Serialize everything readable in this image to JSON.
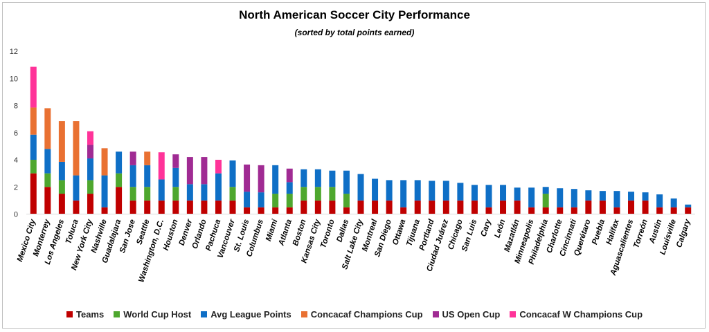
{
  "chart_data": {
    "type": "bar",
    "stacked": true,
    "title": "North American Soccer City Performance",
    "subtitle": "(sorted by total points earned)",
    "xlabel": "",
    "ylabel": "",
    "ylim": [
      0,
      12
    ],
    "yticks": [
      "0",
      "2",
      "4",
      "6",
      "8",
      "10",
      "12"
    ],
    "grid": false,
    "legend_position": "bottom",
    "categories": [
      "Mexico City",
      "Monterrey",
      "Los Angeles",
      "Toluca",
      "New York City",
      "Nashville",
      "Guadalajara",
      "San Jose",
      "Seattle",
      "Washington, D.C.",
      "Houston",
      "Denver",
      "Orlando",
      "Pachuca",
      "Vancouver",
      "St. Louis",
      "Columbus",
      "Miami",
      "Atlanta",
      "Boston",
      "Kansas City",
      "Toronto",
      "Dallas",
      "Salt Lake City",
      "Montreal",
      "San Diego",
      "Ottawa",
      "Tijuana",
      "Portland",
      "Ciudad Juárez",
      "Chicago",
      "San Luis",
      "Cary",
      "León",
      "Mazatlán",
      "Minneapolis",
      "Philadelphia",
      "Charlotte",
      "Cincinnati",
      "Querétaro",
      "Puebla",
      "Halifax",
      "Aguascalientes",
      "Torreón",
      "Austin",
      "Louisville",
      "Calgary"
    ],
    "series": [
      {
        "name": "Teams",
        "color": "#c00000",
        "values": [
          3,
          2,
          1.5,
          1,
          1.5,
          0.5,
          2,
          1,
          1,
          1,
          1,
          1,
          1,
          1,
          1,
          0.5,
          0.5,
          0.5,
          0.5,
          1,
          1,
          1,
          0.5,
          1,
          1,
          1,
          0.5,
          1,
          1,
          1,
          1,
          1,
          0.5,
          1,
          1,
          0.5,
          0.5,
          0.5,
          0.5,
          1,
          1,
          0.5,
          1,
          1,
          0.5,
          0.5,
          0.5
        ]
      },
      {
        "name": "World Cup Host",
        "color": "#4ea72e",
        "values": [
          1,
          1,
          1,
          0,
          1,
          0,
          1,
          1,
          1,
          0,
          1,
          0,
          0,
          0,
          1,
          0,
          0,
          1,
          1,
          1,
          1,
          1,
          1,
          0,
          0,
          0,
          0,
          0,
          0,
          0,
          0,
          0,
          0,
          0,
          0,
          0,
          1,
          0,
          0,
          0,
          0,
          0,
          0,
          0,
          0,
          0,
          0
        ]
      },
      {
        "name": "Avg League Points",
        "color": "#0f6fc6",
        "values": [
          1.85,
          1.8,
          1.35,
          1.85,
          1.6,
          2.35,
          1.6,
          1.6,
          1.6,
          1.55,
          1.4,
          1.2,
          1.2,
          2,
          1.95,
          1.15,
          1.1,
          2.1,
          0.85,
          1.3,
          1.3,
          1.2,
          1.7,
          1.95,
          1.6,
          1.5,
          2,
          1.5,
          1.45,
          1.45,
          1.3,
          1.15,
          1.65,
          1.15,
          0.95,
          1.45,
          0.5,
          1.4,
          1.35,
          0.75,
          0.7,
          1.2,
          0.65,
          0.6,
          0.95,
          0.65,
          0.2
        ]
      },
      {
        "name": "Concacaf Champions Cup",
        "color": "#e97132",
        "values": [
          2,
          3,
          3,
          4,
          0,
          2,
          0,
          0,
          1,
          0,
          0,
          0,
          0,
          0,
          0,
          0,
          0,
          0,
          0,
          0,
          0,
          0,
          0,
          0,
          0,
          0,
          0,
          0,
          0,
          0,
          0,
          0,
          0,
          0,
          0,
          0,
          0,
          0,
          0,
          0,
          0,
          0,
          0,
          0,
          0,
          0,
          0
        ]
      },
      {
        "name": "US Open Cup",
        "color": "#a02b93",
        "values": [
          0,
          0,
          0,
          0,
          1,
          0,
          0,
          1,
          0,
          0,
          1,
          2,
          2,
          0,
          0,
          2,
          2,
          0,
          1,
          0,
          0,
          0,
          0,
          0,
          0,
          0,
          0,
          0,
          0,
          0,
          0,
          0,
          0,
          0,
          0,
          0,
          0,
          0,
          0,
          0,
          0,
          0,
          0,
          0,
          0,
          0,
          0
        ]
      },
      {
        "name": "Concacaf W Champions Cup",
        "color": "#ff3399",
        "values": [
          3,
          0,
          0,
          0,
          1,
          0,
          0,
          0,
          0,
          2,
          0,
          0,
          0,
          1,
          0,
          0,
          0,
          0,
          0,
          0,
          0,
          0,
          0,
          0,
          0,
          0,
          0,
          0,
          0,
          0,
          0,
          0,
          0,
          0,
          0,
          0,
          0,
          0,
          0,
          0,
          0,
          0,
          0,
          0,
          0,
          0,
          0
        ]
      }
    ]
  }
}
